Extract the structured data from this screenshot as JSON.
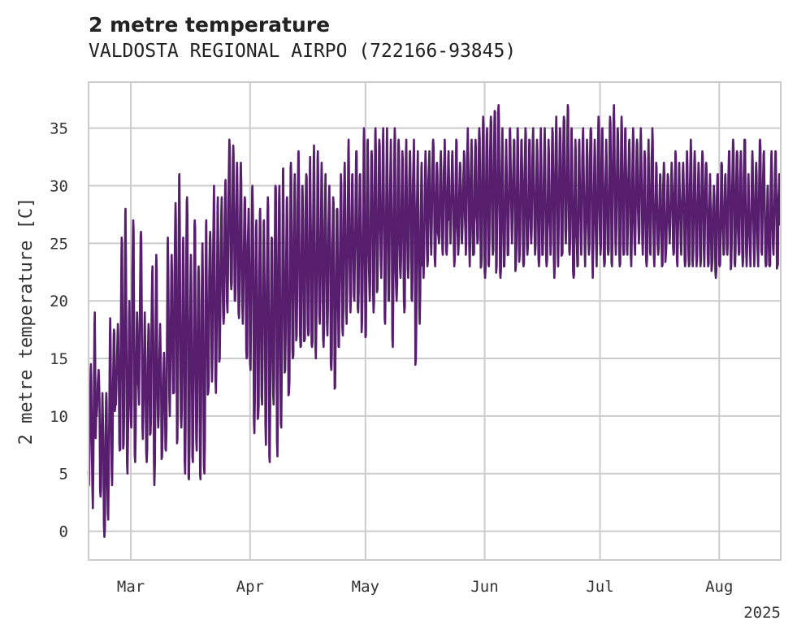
{
  "chart_data": {
    "type": "line",
    "title": "2 metre temperature",
    "subtitle": "VALDOSTA REGIONAL AIRPO (722166-93845)",
    "xlabel": "",
    "ylabel": "2 metre temperature [C]",
    "x_tick_labels": [
      "Mar",
      "Apr",
      "May",
      "Jun",
      "Jul",
      "Aug"
    ],
    "x_tick_dates": [
      "2025-03-01",
      "2025-04-01",
      "2025-05-01",
      "2025-06-01",
      "2025-07-01",
      "2025-08-01"
    ],
    "x_offset_label": "2025",
    "xlim": [
      "2025-02-18",
      "2025-08-17"
    ],
    "y_ticks": [
      0,
      5,
      10,
      15,
      20,
      25,
      30,
      35
    ],
    "ylim": [
      -2.5,
      39
    ],
    "grid": true,
    "legend": "none",
    "series": [
      {
        "color": "#561e6d",
        "sampling": "hourly",
        "start": "2025-02-18",
        "daily_min_max": [
          [
            4,
            14.5
          ],
          [
            2,
            19
          ],
          [
            10,
            14
          ],
          [
            3,
            12
          ],
          [
            -0.5,
            12
          ],
          [
            1,
            18.5
          ],
          [
            4,
            17.5
          ],
          [
            11,
            18
          ],
          [
            7,
            25.5
          ],
          [
            7.5,
            28
          ],
          [
            5,
            20
          ],
          [
            9,
            27
          ],
          [
            6,
            19
          ],
          [
            11,
            26
          ],
          [
            8,
            19
          ],
          [
            6,
            18
          ],
          [
            8.5,
            23
          ],
          [
            4,
            24
          ],
          [
            9,
            18
          ],
          [
            6.5,
            15.5
          ],
          [
            7,
            25.5
          ],
          [
            10,
            24
          ],
          [
            12,
            28.5
          ],
          [
            8,
            31
          ],
          [
            9,
            25.5
          ],
          [
            5,
            29
          ],
          [
            4.5,
            24
          ],
          [
            6,
            27
          ],
          [
            7,
            23
          ],
          [
            4.5,
            25
          ],
          [
            5,
            27
          ],
          [
            12,
            26
          ],
          [
            13,
            30
          ],
          [
            12,
            29
          ],
          [
            15,
            29
          ],
          [
            18,
            30.5
          ],
          [
            19,
            34
          ],
          [
            21,
            33.5
          ],
          [
            20,
            32
          ],
          [
            18.5,
            32
          ],
          [
            18,
            29
          ],
          [
            15,
            28
          ],
          [
            14,
            30
          ],
          [
            8.5,
            27
          ],
          [
            10,
            28
          ],
          [
            11,
            27
          ],
          [
            7.5,
            29
          ],
          [
            6,
            25.5
          ],
          [
            11,
            30
          ],
          [
            6.5,
            30
          ],
          [
            9,
            31.5
          ],
          [
            14,
            29
          ],
          [
            12,
            32
          ],
          [
            15,
            31
          ],
          [
            17,
            33
          ],
          [
            16,
            30
          ],
          [
            16.5,
            31
          ],
          [
            17,
            32.5
          ],
          [
            16,
            33.5
          ],
          [
            15,
            33
          ],
          [
            18,
            32
          ],
          [
            16,
            31
          ],
          [
            17,
            30
          ],
          [
            14,
            29
          ],
          [
            12.5,
            28
          ],
          [
            16,
            31
          ],
          [
            17,
            32
          ],
          [
            18,
            34
          ],
          [
            19,
            31
          ],
          [
            20,
            33
          ],
          [
            19,
            31
          ],
          [
            18,
            35
          ],
          [
            17,
            34
          ],
          [
            20,
            33
          ],
          [
            19,
            35
          ],
          [
            21,
            34
          ],
          [
            22,
            35
          ],
          [
            18,
            35
          ],
          [
            20,
            34
          ],
          [
            16,
            35
          ],
          [
            20,
            34
          ],
          [
            22,
            33
          ],
          [
            19,
            34
          ],
          [
            22,
            33
          ],
          [
            20,
            34
          ],
          [
            15,
            33
          ],
          [
            18,
            32
          ],
          [
            22,
            33
          ],
          [
            23,
            33
          ],
          [
            24,
            34
          ],
          [
            23,
            32
          ],
          [
            25,
            33
          ],
          [
            24,
            34
          ],
          [
            24,
            33
          ],
          [
            25,
            33
          ],
          [
            23,
            34
          ],
          [
            24,
            32
          ],
          [
            25,
            33
          ],
          [
            24,
            35
          ],
          [
            23,
            34
          ],
          [
            24,
            34
          ],
          [
            25,
            35
          ],
          [
            23,
            36
          ],
          [
            22,
            35
          ],
          [
            23,
            36
          ],
          [
            24,
            36.5
          ],
          [
            23,
            37
          ],
          [
            22,
            35
          ],
          [
            23,
            34
          ],
          [
            24,
            35
          ],
          [
            25,
            34
          ],
          [
            23,
            35
          ],
          [
            24,
            34
          ],
          [
            23,
            35
          ],
          [
            24,
            34
          ],
          [
            25,
            35
          ],
          [
            24,
            34
          ],
          [
            23,
            35
          ],
          [
            24,
            35
          ],
          [
            23,
            34
          ],
          [
            24,
            35
          ],
          [
            22,
            36
          ],
          [
            23,
            35
          ],
          [
            24,
            36
          ],
          [
            25,
            37
          ],
          [
            24,
            35
          ],
          [
            22,
            34
          ],
          [
            23,
            34
          ],
          [
            24,
            35
          ],
          [
            23,
            34
          ],
          [
            24,
            35
          ],
          [
            22,
            34
          ],
          [
            23,
            36
          ],
          [
            24,
            35
          ],
          [
            23,
            34
          ],
          [
            24,
            36
          ],
          [
            23,
            37
          ],
          [
            24,
            35
          ],
          [
            23,
            36
          ],
          [
            24,
            35
          ],
          [
            24,
            34
          ],
          [
            23,
            35
          ],
          [
            24,
            34
          ],
          [
            25,
            35
          ],
          [
            24,
            33
          ],
          [
            23,
            34
          ],
          [
            24,
            35
          ],
          [
            23,
            32
          ],
          [
            24,
            31
          ],
          [
            23,
            32
          ],
          [
            24,
            31
          ],
          [
            25,
            32
          ],
          [
            24,
            33
          ],
          [
            23,
            32
          ],
          [
            24,
            32
          ],
          [
            23,
            33
          ],
          [
            23,
            34
          ],
          [
            23,
            33
          ],
          [
            23,
            32
          ],
          [
            23,
            33
          ],
          [
            23,
            32
          ],
          [
            23,
            31
          ],
          [
            23,
            30
          ],
          [
            22,
            31
          ],
          [
            23,
            32
          ],
          [
            24,
            31
          ],
          [
            24,
            33
          ],
          [
            23,
            34
          ],
          [
            23,
            33
          ],
          [
            24,
            33
          ],
          [
            23,
            34
          ],
          [
            23,
            31
          ],
          [
            23,
            33
          ],
          [
            23,
            32
          ],
          [
            23,
            34
          ],
          [
            24,
            33
          ],
          [
            23,
            30
          ],
          [
            23,
            33
          ],
          [
            24,
            33
          ],
          [
            23,
            31
          ]
        ]
      }
    ]
  }
}
